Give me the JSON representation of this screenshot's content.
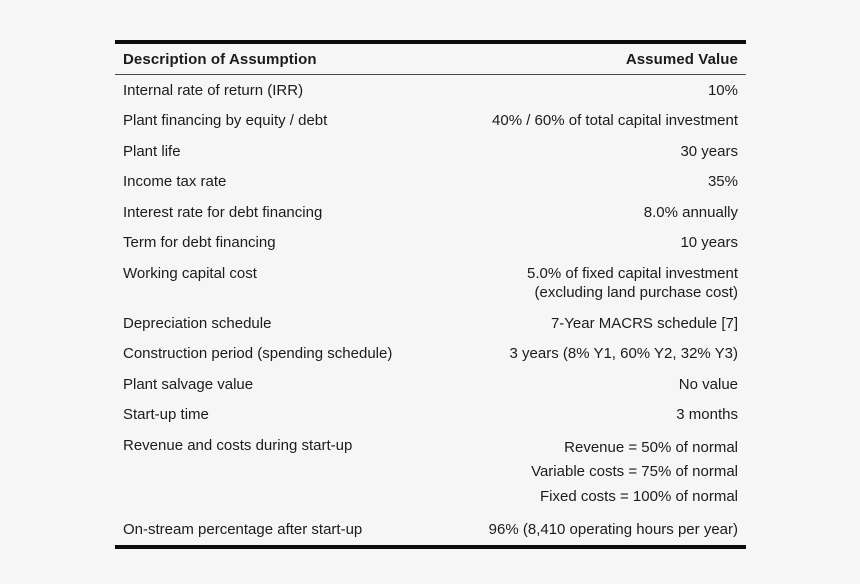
{
  "colors": {
    "background": "#f6f6f6",
    "text": "#1c1c1c",
    "thick_rule": "#0d0d0d",
    "thin_rule": "#4a4a4a"
  },
  "table": {
    "columns": {
      "description": "Description of Assumption",
      "value": "Assumed Value"
    },
    "rows": [
      {
        "description": "Internal rate of return (IRR)",
        "value_lines": [
          "10%"
        ],
        "line_spacing": "normal"
      },
      {
        "description": "Plant financing by equity / debt",
        "value_lines": [
          "40% / 60% of total capital investment"
        ],
        "line_spacing": "normal"
      },
      {
        "description": "Plant life",
        "value_lines": [
          "30 years"
        ],
        "line_spacing": "normal"
      },
      {
        "description": "Income tax rate",
        "value_lines": [
          "35%"
        ],
        "line_spacing": "normal"
      },
      {
        "description": "Interest rate for debt financing",
        "value_lines": [
          "8.0% annually"
        ],
        "line_spacing": "normal"
      },
      {
        "description": "Term for debt financing",
        "value_lines": [
          "10 years"
        ],
        "line_spacing": "normal"
      },
      {
        "description": "Working capital cost",
        "value_lines": [
          "5.0% of fixed capital investment",
          "(excluding land purchase cost)"
        ],
        "line_spacing": "normal"
      },
      {
        "description": "Depreciation schedule",
        "value_lines": [
          "7-Year MACRS schedule [7]"
        ],
        "line_spacing": "normal"
      },
      {
        "description": "Construction period (spending schedule)",
        "value_lines": [
          "3 years (8% Y1, 60% Y2, 32% Y3)"
        ],
        "line_spacing": "normal"
      },
      {
        "description": "Plant salvage value",
        "value_lines": [
          "No value"
        ],
        "line_spacing": "normal"
      },
      {
        "description": "Start-up time",
        "value_lines": [
          "3 months"
        ],
        "line_spacing": "normal"
      },
      {
        "description": "Revenue and costs during start-up",
        "value_lines": [
          "Revenue = 50% of normal",
          "Variable costs = 75% of normal",
          "Fixed costs = 100% of normal"
        ],
        "line_spacing": "loose"
      },
      {
        "description": "On-stream percentage after start-up",
        "value_lines": [
          "96% (8,410 operating hours per year)"
        ],
        "line_spacing": "normal"
      }
    ]
  }
}
